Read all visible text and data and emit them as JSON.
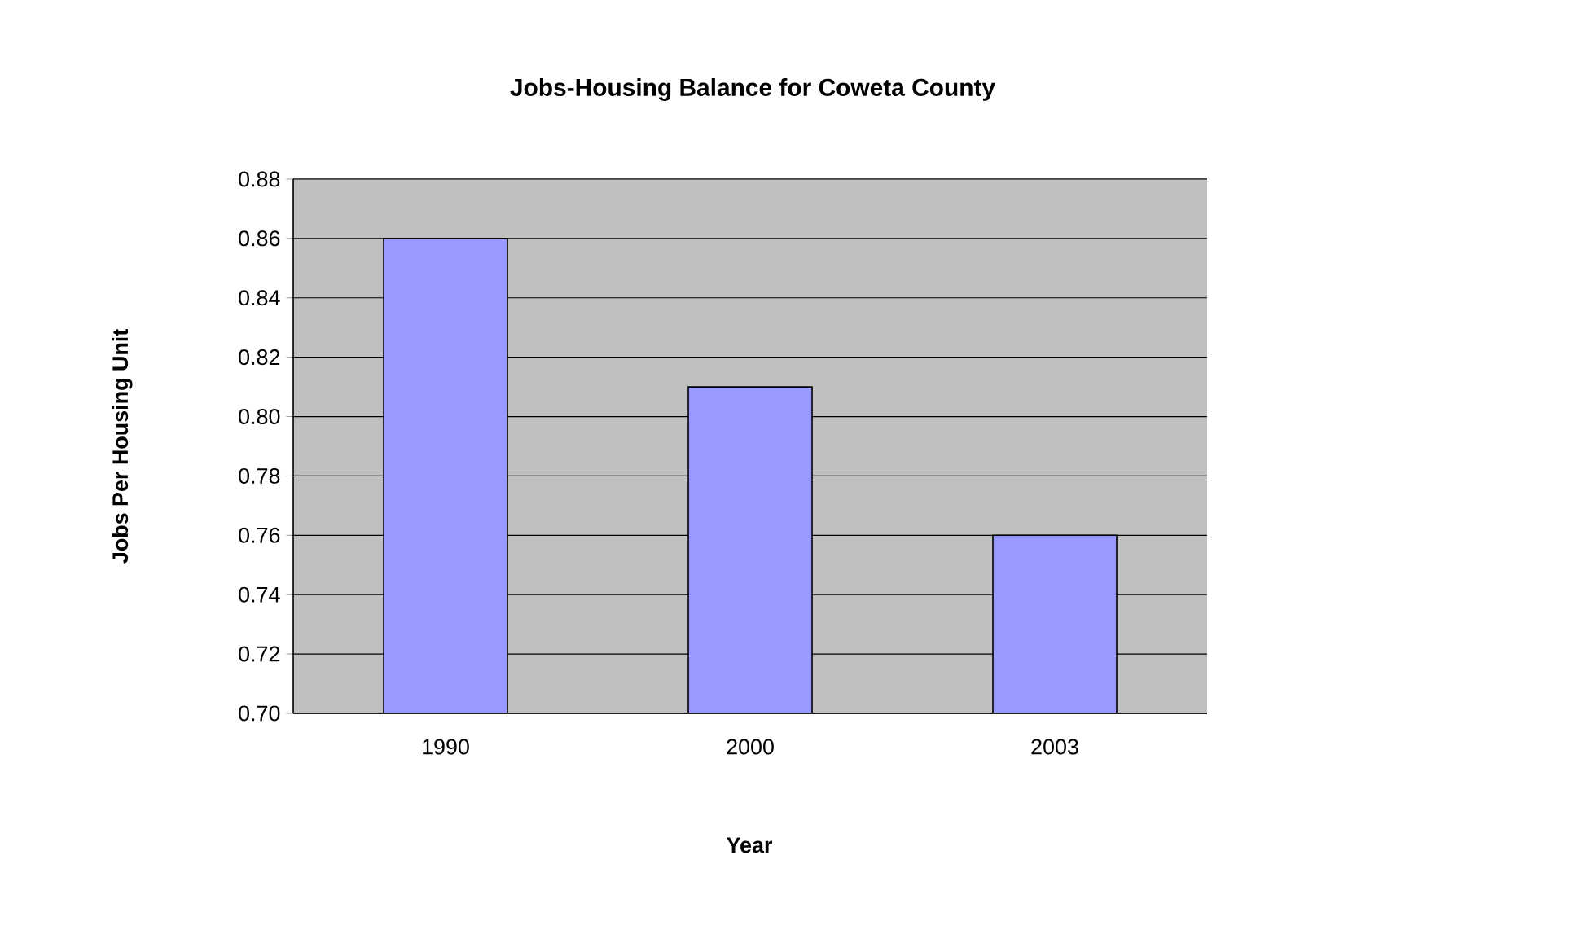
{
  "chart_data": {
    "type": "bar",
    "title": "Jobs-Housing Balance for Coweta County",
    "xlabel": "Year",
    "ylabel": "Jobs Per Housing Unit",
    "categories": [
      "1990",
      "2000",
      "2003"
    ],
    "values": [
      0.86,
      0.81,
      0.76
    ],
    "color": "#9999ff",
    "ylim": [
      0.7,
      0.88
    ],
    "yticks": [
      {
        "value": 0.7,
        "label": "0.70"
      },
      {
        "value": 0.72,
        "label": "0.72"
      },
      {
        "value": 0.74,
        "label": "0.74"
      },
      {
        "value": 0.76,
        "label": "0.76"
      },
      {
        "value": 0.78,
        "label": "0.78"
      },
      {
        "value": 0.8,
        "label": "0.80"
      },
      {
        "value": 0.82,
        "label": "0.82"
      },
      {
        "value": 0.84,
        "label": "0.84"
      },
      {
        "value": 0.86,
        "label": "0.86"
      },
      {
        "value": 0.88,
        "label": "0.88"
      }
    ],
    "grid": "y"
  }
}
